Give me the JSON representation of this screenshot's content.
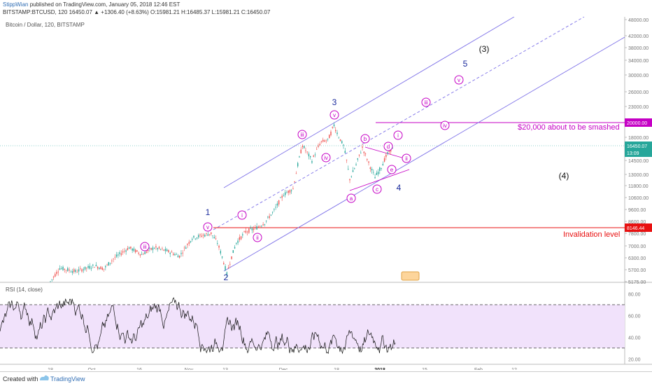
{
  "header": {
    "user": "StippWian",
    "published": "published on TradingView.com, January 05, 2018 12:46 EST",
    "symbol": "BITSTAMP:BTCUSD, 120",
    "ohlc": "16450.07 ▲ +1306.40 (+8.63%) O:15981.21 H:16485.37 L:15981.21 C:16450.07"
  },
  "footer": {
    "created_with": "Created with",
    "brand": "TradingView"
  },
  "chart_data": {
    "type": "line",
    "title": "Bitcoin / Dollar, 120, BITSTAMP",
    "y_axis_ticks": [
      "48000.00",
      "42000.00",
      "38000.00",
      "34000.00",
      "30000.00",
      "26000.00",
      "23000.00",
      "20000.00",
      "18000.00",
      "16450.07",
      "14500.00",
      "13000.00",
      "11800.00",
      "10600.00",
      "9600.00",
      "8600.00",
      "8146.44",
      "7800.00",
      "7000.00",
      "6300.00",
      "5700.00",
      "5175.00"
    ],
    "ylim": [
      5175,
      48000
    ],
    "x_axis_ticks": [
      "18",
      "Oct",
      "16",
      "Nov",
      "13",
      "Dec",
      "18",
      "2018",
      "15",
      "Feb",
      "12"
    ],
    "last_price": 16450.07,
    "last_badge_sub": "13:09",
    "price_path": [
      {
        "x": "18 Sep",
        "y": 5175
      },
      {
        "x": "21 Sep",
        "y": 5780
      },
      {
        "x": "26 Sep",
        "y": 5620
      },
      {
        "x": "2 Oct",
        "y": 5900
      },
      {
        "x": "5 Oct",
        "y": 5750
      },
      {
        "x": "8 Oct",
        "y": 6250
      },
      {
        "x": "13 Oct",
        "y": 6900
      },
      {
        "x": "17 Oct",
        "y": 6500
      },
      {
        "x": "21 Oct",
        "y": 6900
      },
      {
        "x": "25 Oct",
        "y": 6700
      },
      {
        "x": "29 Oct",
        "y": 6400
      },
      {
        "x": "2 Nov",
        "y": 7500
      },
      {
        "x": "8 Nov",
        "y": 7800
      },
      {
        "x": "10 Nov",
        "y": 7200
      },
      {
        "x": "13 Nov",
        "y": 5500
      },
      {
        "x": "16 Nov",
        "y": 7200
      },
      {
        "x": "19 Nov",
        "y": 7900
      },
      {
        "x": "22 Nov",
        "y": 8100
      },
      {
        "x": "25 Nov",
        "y": 8500
      },
      {
        "x": "28 Nov",
        "y": 9500
      },
      {
        "x": "1 Dec",
        "y": 10900
      },
      {
        "x": "4 Dec",
        "y": 11500
      },
      {
        "x": "7 Dec",
        "y": 16500
      },
      {
        "x": "10 Dec",
        "y": 14500
      },
      {
        "x": "13 Dec",
        "y": 17200
      },
      {
        "x": "15 Dec",
        "y": 17500
      },
      {
        "x": "17 Dec",
        "y": 19666
      },
      {
        "x": "20 Dec",
        "y": 16500
      },
      {
        "x": "22 Dec",
        "y": 12500
      },
      {
        "x": "24 Dec",
        "y": 14000
      },
      {
        "x": "26 Dec",
        "y": 16200
      },
      {
        "x": "28 Dec",
        "y": 14200
      },
      {
        "x": "30 Dec",
        "y": 12700
      },
      {
        "x": "1 Jan",
        "y": 13800
      },
      {
        "x": "3 Jan",
        "y": 15400
      },
      {
        "x": "5 Jan",
        "y": 16450
      }
    ],
    "levels": [
      {
        "price": 20000,
        "label": "$20,000 about to be smashed",
        "color": "#c500c5"
      },
      {
        "price": 8146.44,
        "label": "Invalidation level",
        "color": "#e81111"
      }
    ],
    "wave_labels": [
      {
        "text": "1"
      },
      {
        "text": "2"
      },
      {
        "text": "3"
      },
      {
        "text": "4"
      },
      {
        "text": "5"
      },
      {
        "text": "(3)"
      },
      {
        "text": "(4)"
      }
    ],
    "sub_wave_labels": [
      "iii",
      "v",
      "i",
      "ii",
      "iii",
      "iv",
      "v",
      "a",
      "b",
      "c",
      "d",
      "e",
      "i",
      "ii",
      "iii",
      "iv",
      "v"
    ],
    "rsi": {
      "title": "RSI (14, close)",
      "ticks": [
        "80.00",
        "60.00",
        "40.00",
        "20.00"
      ],
      "overbought": 70,
      "oversold": 30,
      "ylim": [
        15,
        90
      ]
    }
  }
}
